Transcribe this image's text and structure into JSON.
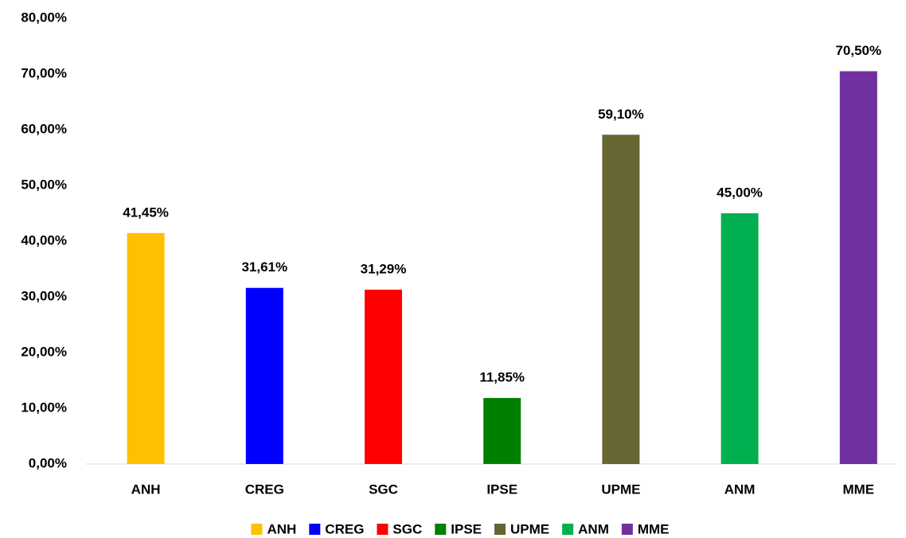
{
  "chart_data": {
    "type": "bar",
    "categories": [
      "ANH",
      "CREG",
      "SGC",
      "IPSE",
      "UPME",
      "ANM",
      "MME"
    ],
    "values": [
      41.45,
      31.61,
      31.29,
      11.85,
      59.1,
      45,
      70.5
    ],
    "value_labels": [
      "41,45%",
      "31,61%",
      "31,29%",
      "11,85%",
      "59,10%",
      "45,00%",
      "70,50%"
    ],
    "colors": [
      "#ffc000",
      "#0000ff",
      "#ff0000",
      "#008000",
      "#666633",
      "#00b050",
      "#7030a0"
    ],
    "ylim": [
      0,
      80
    ],
    "yticks": [
      {
        "value": 0,
        "label": "0,00%"
      },
      {
        "value": 10,
        "label": "10,00%"
      },
      {
        "value": 20,
        "label": "20,00%"
      },
      {
        "value": 30,
        "label": "30,00%"
      },
      {
        "value": 40,
        "label": "40,00%"
      },
      {
        "value": 50,
        "label": "50,00%"
      },
      {
        "value": 60,
        "label": "60,00%"
      },
      {
        "value": 70,
        "label": "70,00%"
      },
      {
        "value": 80,
        "label": "80,00%"
      }
    ],
    "grid": false,
    "legend": "bottom"
  }
}
